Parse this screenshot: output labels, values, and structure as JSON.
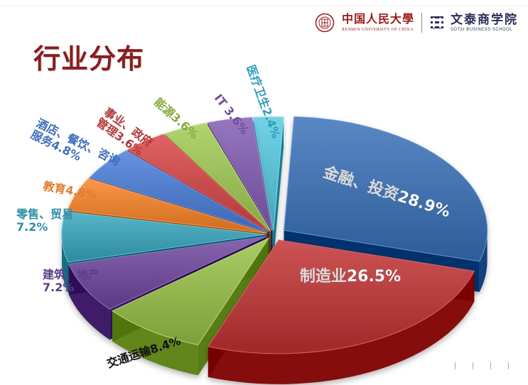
{
  "header": {
    "university_cn": "中国人民大學",
    "university_en": "RENMIN UNIVERSITY OF CHINA",
    "school_cn": "文泰商学院",
    "school_en": "SOTAI BUSINESS SCHOOL"
  },
  "page": {
    "title": "行业分布"
  },
  "chart_data": {
    "type": "pie",
    "title": "",
    "series": [
      {
        "name": "",
        "values": [
          28.9,
          26.5,
          8.4,
          7.2,
          7.2,
          4.8,
          4.8,
          3.6,
          3.6,
          3.6,
          2.4
        ]
      }
    ],
    "categories": [
      "金融、投资",
      "制造业",
      "交通运输",
      "建筑、地产",
      "零售、贸易",
      "教育",
      "酒店、餐饮、咨询服务",
      "事业、政府管理",
      "能源",
      "IT",
      "医疗卫生"
    ],
    "labels": [
      "金融、投资28.9%",
      "制造业26.5%",
      "交通运输8.4%",
      "建筑、地产\n7.2%",
      "零售、贸易\n7.2%",
      "教育4.8%",
      "酒店、餐饮、咨询\n服务4.8%",
      "事业、政府\n管理3.6%",
      "能源3.6%",
      "IT 3.6%",
      "医疗卫生2.4%"
    ],
    "colors": [
      "#3f6eab",
      "#b23a3b",
      "#8fb24b",
      "#6d4b95",
      "#3f9cb0",
      "#e07d2f",
      "#4d78c6",
      "#c5494a",
      "#98ba56",
      "#7d5ca6",
      "#58b9cd"
    ],
    "label_colors": [
      "#ffffff",
      "#ffffff",
      "#111111",
      "#5b3f89",
      "#2d8ea7",
      "#e07d2f",
      "#3e6dbb",
      "#b2393a",
      "#86a83f",
      "#6f4d9c",
      "#2f9db8"
    ],
    "legend": "none",
    "grid": false
  }
}
